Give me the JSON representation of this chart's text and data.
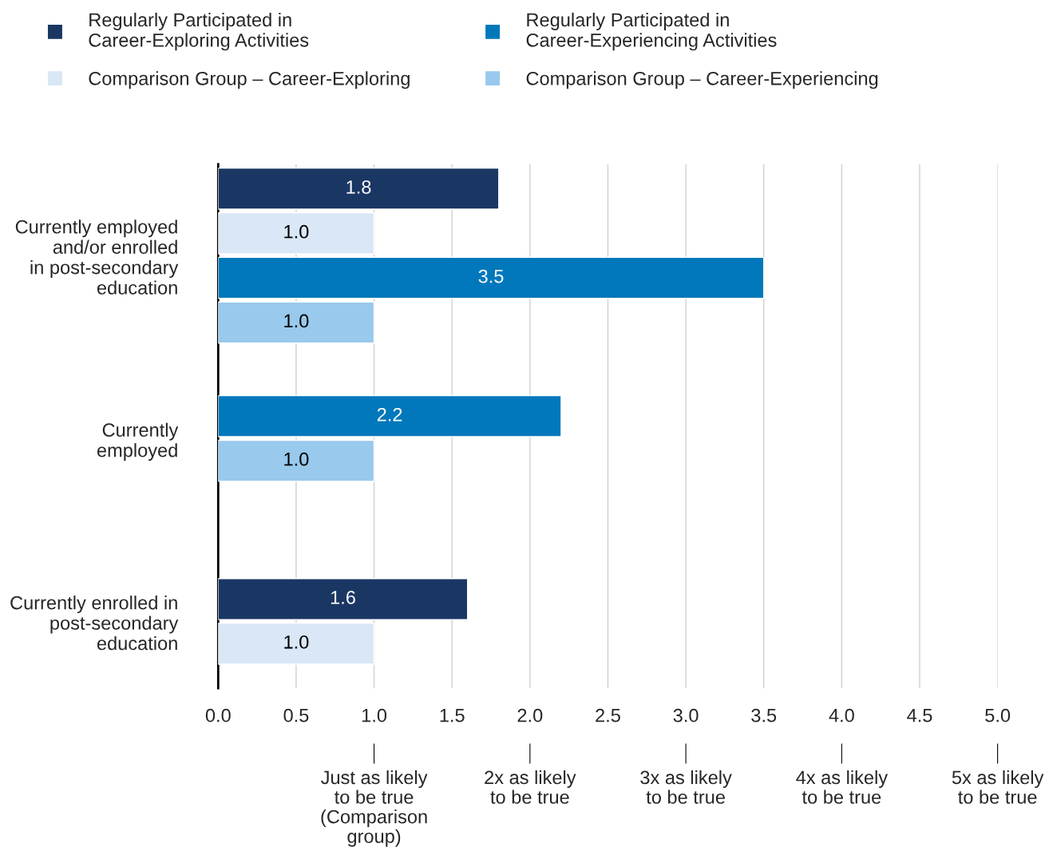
{
  "chart_data": {
    "type": "bar",
    "orientation": "horizontal",
    "categories": [
      "Currently employed\nand/or enrolled\nin post-secondary\neducation",
      "Currently\nemployed",
      "Currently enrolled in\npost-secondary\neducation"
    ],
    "series": [
      {
        "name": "Regularly Participated in\nCareer-Exploring Activities",
        "color": "#1a3764",
        "values": [
          1.8,
          null,
          1.6
        ],
        "value_labels": [
          "1.8",
          null,
          "1.6"
        ]
      },
      {
        "name": "Comparison Group – Career-Exploring",
        "color": "#d9e7f6",
        "values": [
          1.0,
          null,
          1.0
        ],
        "value_labels": [
          "1.0",
          null,
          "1.0"
        ]
      },
      {
        "name": "Regularly Participated in\nCareer-Experiencing Activities",
        "color": "#0078bb",
        "values": [
          3.5,
          2.2,
          null
        ],
        "value_labels": [
          "3.5",
          "2.2",
          null
        ]
      },
      {
        "name": "Comparison Group – Career-Experiencing",
        "color": "#99c9ec",
        "values": [
          1.0,
          1.0,
          null
        ],
        "value_labels": [
          "1.0",
          "1.0",
          null
        ]
      }
    ],
    "xlim": [
      0,
      5
    ],
    "xticks": [
      {
        "value": 0,
        "label": "0.0"
      },
      0.5,
      {
        "value": 1,
        "label": "1.0"
      },
      1.5,
      {
        "value": 2,
        "label": "2.0"
      },
      2.5,
      {
        "value": 3,
        "label": "3.0"
      },
      3.5,
      {
        "value": 4,
        "label": "4.0"
      },
      4.5,
      {
        "value": 5,
        "label": "5.0"
      }
    ],
    "grid": "x",
    "legend": "top",
    "x2lim": [
      0,
      5
    ],
    "x2ticks": [
      {
        "value": 1,
        "label": "Just as likely\nto be true\n(Comparison\ngroup)"
      },
      {
        "value": 2,
        "label": "2x as likely\nto be true"
      },
      {
        "value": 3,
        "label": "3x as likely\nto be true"
      },
      {
        "value": 4,
        "label": "4x as likely\nto be true"
      },
      {
        "value": 5,
        "label": "5x as likely\nto be true"
      }
    ]
  }
}
